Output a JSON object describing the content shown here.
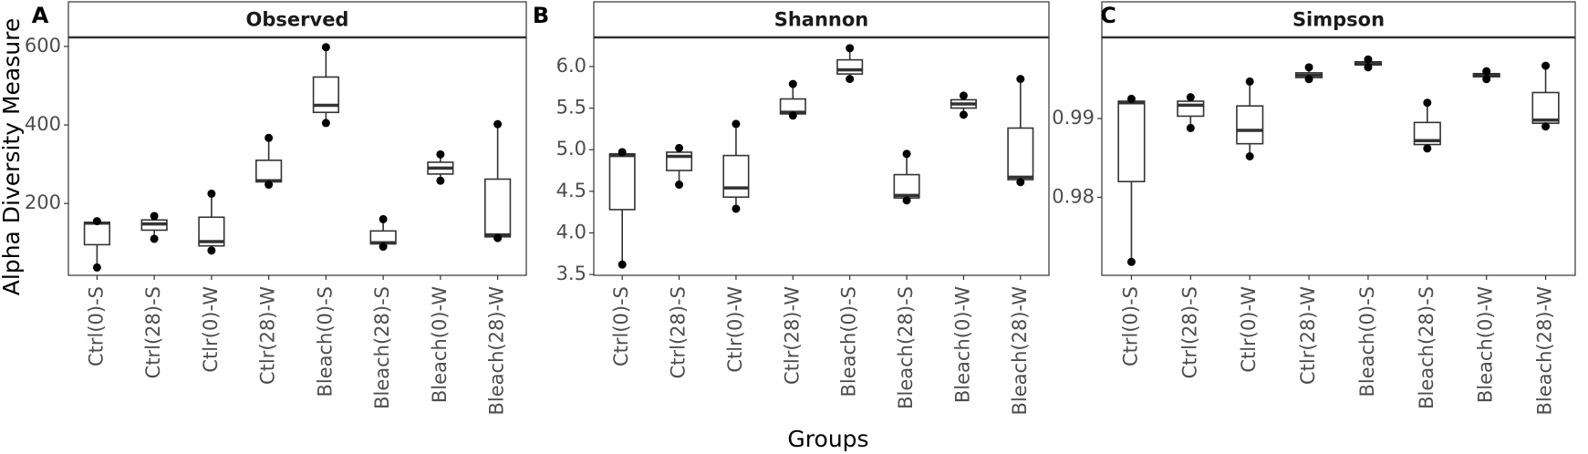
{
  "shared": {
    "ylabel": "Alpha Diversity Measure",
    "xlabel": "Groups"
  },
  "chart_data": [
    {
      "type": "box",
      "panel": "A",
      "title": "Observed",
      "categories": [
        "Ctrl(0)-S",
        "Ctrl(28)-S",
        "Ctlr(0)-W",
        "Ctlr(28)-W",
        "Bleach(0)-S",
        "Bleach(28)-S",
        "Bleach(0)-W",
        "Bleach(28)-W"
      ],
      "min": [
        37,
        110,
        80,
        248,
        405,
        90,
        258,
        112
      ],
      "q1": [
        95,
        132,
        92,
        255,
        432,
        97,
        275,
        115
      ],
      "median": [
        150,
        148,
        103,
        258,
        450,
        100,
        290,
        120
      ],
      "q3": [
        152,
        158,
        165,
        310,
        522,
        130,
        305,
        262
      ],
      "max": [
        155,
        168,
        225,
        367,
        598,
        160,
        325,
        402
      ],
      "color": "#333333",
      "ylim": [
        17,
        623
      ],
      "yticks": [
        200,
        400,
        600
      ]
    },
    {
      "type": "box",
      "panel": "B",
      "title": "Shannon",
      "categories": [
        "Ctrl(0)-S",
        "Ctrl(28)-S",
        "Ctlr(0)-W",
        "Ctlr(28)-W",
        "Bleach(0)-S",
        "Bleach(28)-S",
        "Bleach(0)-W",
        "Bleach(28)-W"
      ],
      "min": [
        3.62,
        4.58,
        4.29,
        5.41,
        5.85,
        4.39,
        5.42,
        4.61
      ],
      "q1": [
        4.28,
        4.75,
        4.43,
        5.43,
        5.91,
        4.42,
        5.5,
        4.64
      ],
      "median": [
        4.93,
        4.92,
        4.54,
        5.45,
        5.96,
        4.45,
        5.55,
        4.67
      ],
      "q3": [
        4.95,
        4.97,
        4.93,
        5.61,
        6.08,
        4.7,
        5.6,
        5.26
      ],
      "max": [
        4.97,
        5.02,
        5.31,
        5.79,
        6.22,
        4.95,
        5.65,
        5.85
      ],
      "color": "#333333",
      "ylim": [
        3.49,
        6.35
      ],
      "yticks": [
        3.5,
        {
          "value": 4,
          "label": "4.0"
        },
        4.5,
        {
          "value": 5,
          "label": "5.0"
        },
        5.5,
        {
          "value": 6,
          "label": "6.0"
        }
      ]
    },
    {
      "type": "box",
      "panel": "C",
      "title": "Simpson",
      "categories": [
        "Ctrl(0)-S",
        "Ctrl(28)-S",
        "Ctlr(0)-W",
        "Ctlr(28)-W",
        "Bleach(0)-S",
        "Bleach(28)-S",
        "Bleach(0)-W",
        "Bleach(28)-W"
      ],
      "min": [
        0.9718,
        0.9888,
        0.9852,
        0.995,
        0.9965,
        0.9862,
        0.995,
        0.989
      ],
      "q1": [
        0.982,
        0.9903,
        0.9868,
        0.9952,
        0.9968,
        0.9867,
        0.9953,
        0.9894
      ],
      "median": [
        0.992,
        0.9917,
        0.9885,
        0.9955,
        0.997,
        0.9872,
        0.9955,
        0.9898
      ],
      "q3": [
        0.9922,
        0.9922,
        0.9916,
        0.9958,
        0.9972,
        0.9895,
        0.9957,
        0.9933
      ],
      "max": [
        0.9925,
        0.9927,
        0.9947,
        0.9965,
        0.9975,
        0.992,
        0.996,
        0.9967
      ],
      "color": "#333333",
      "ylim": [
        0.9701,
        1.0003
      ],
      "yticks": [
        0.98,
        0.99
      ]
    }
  ]
}
